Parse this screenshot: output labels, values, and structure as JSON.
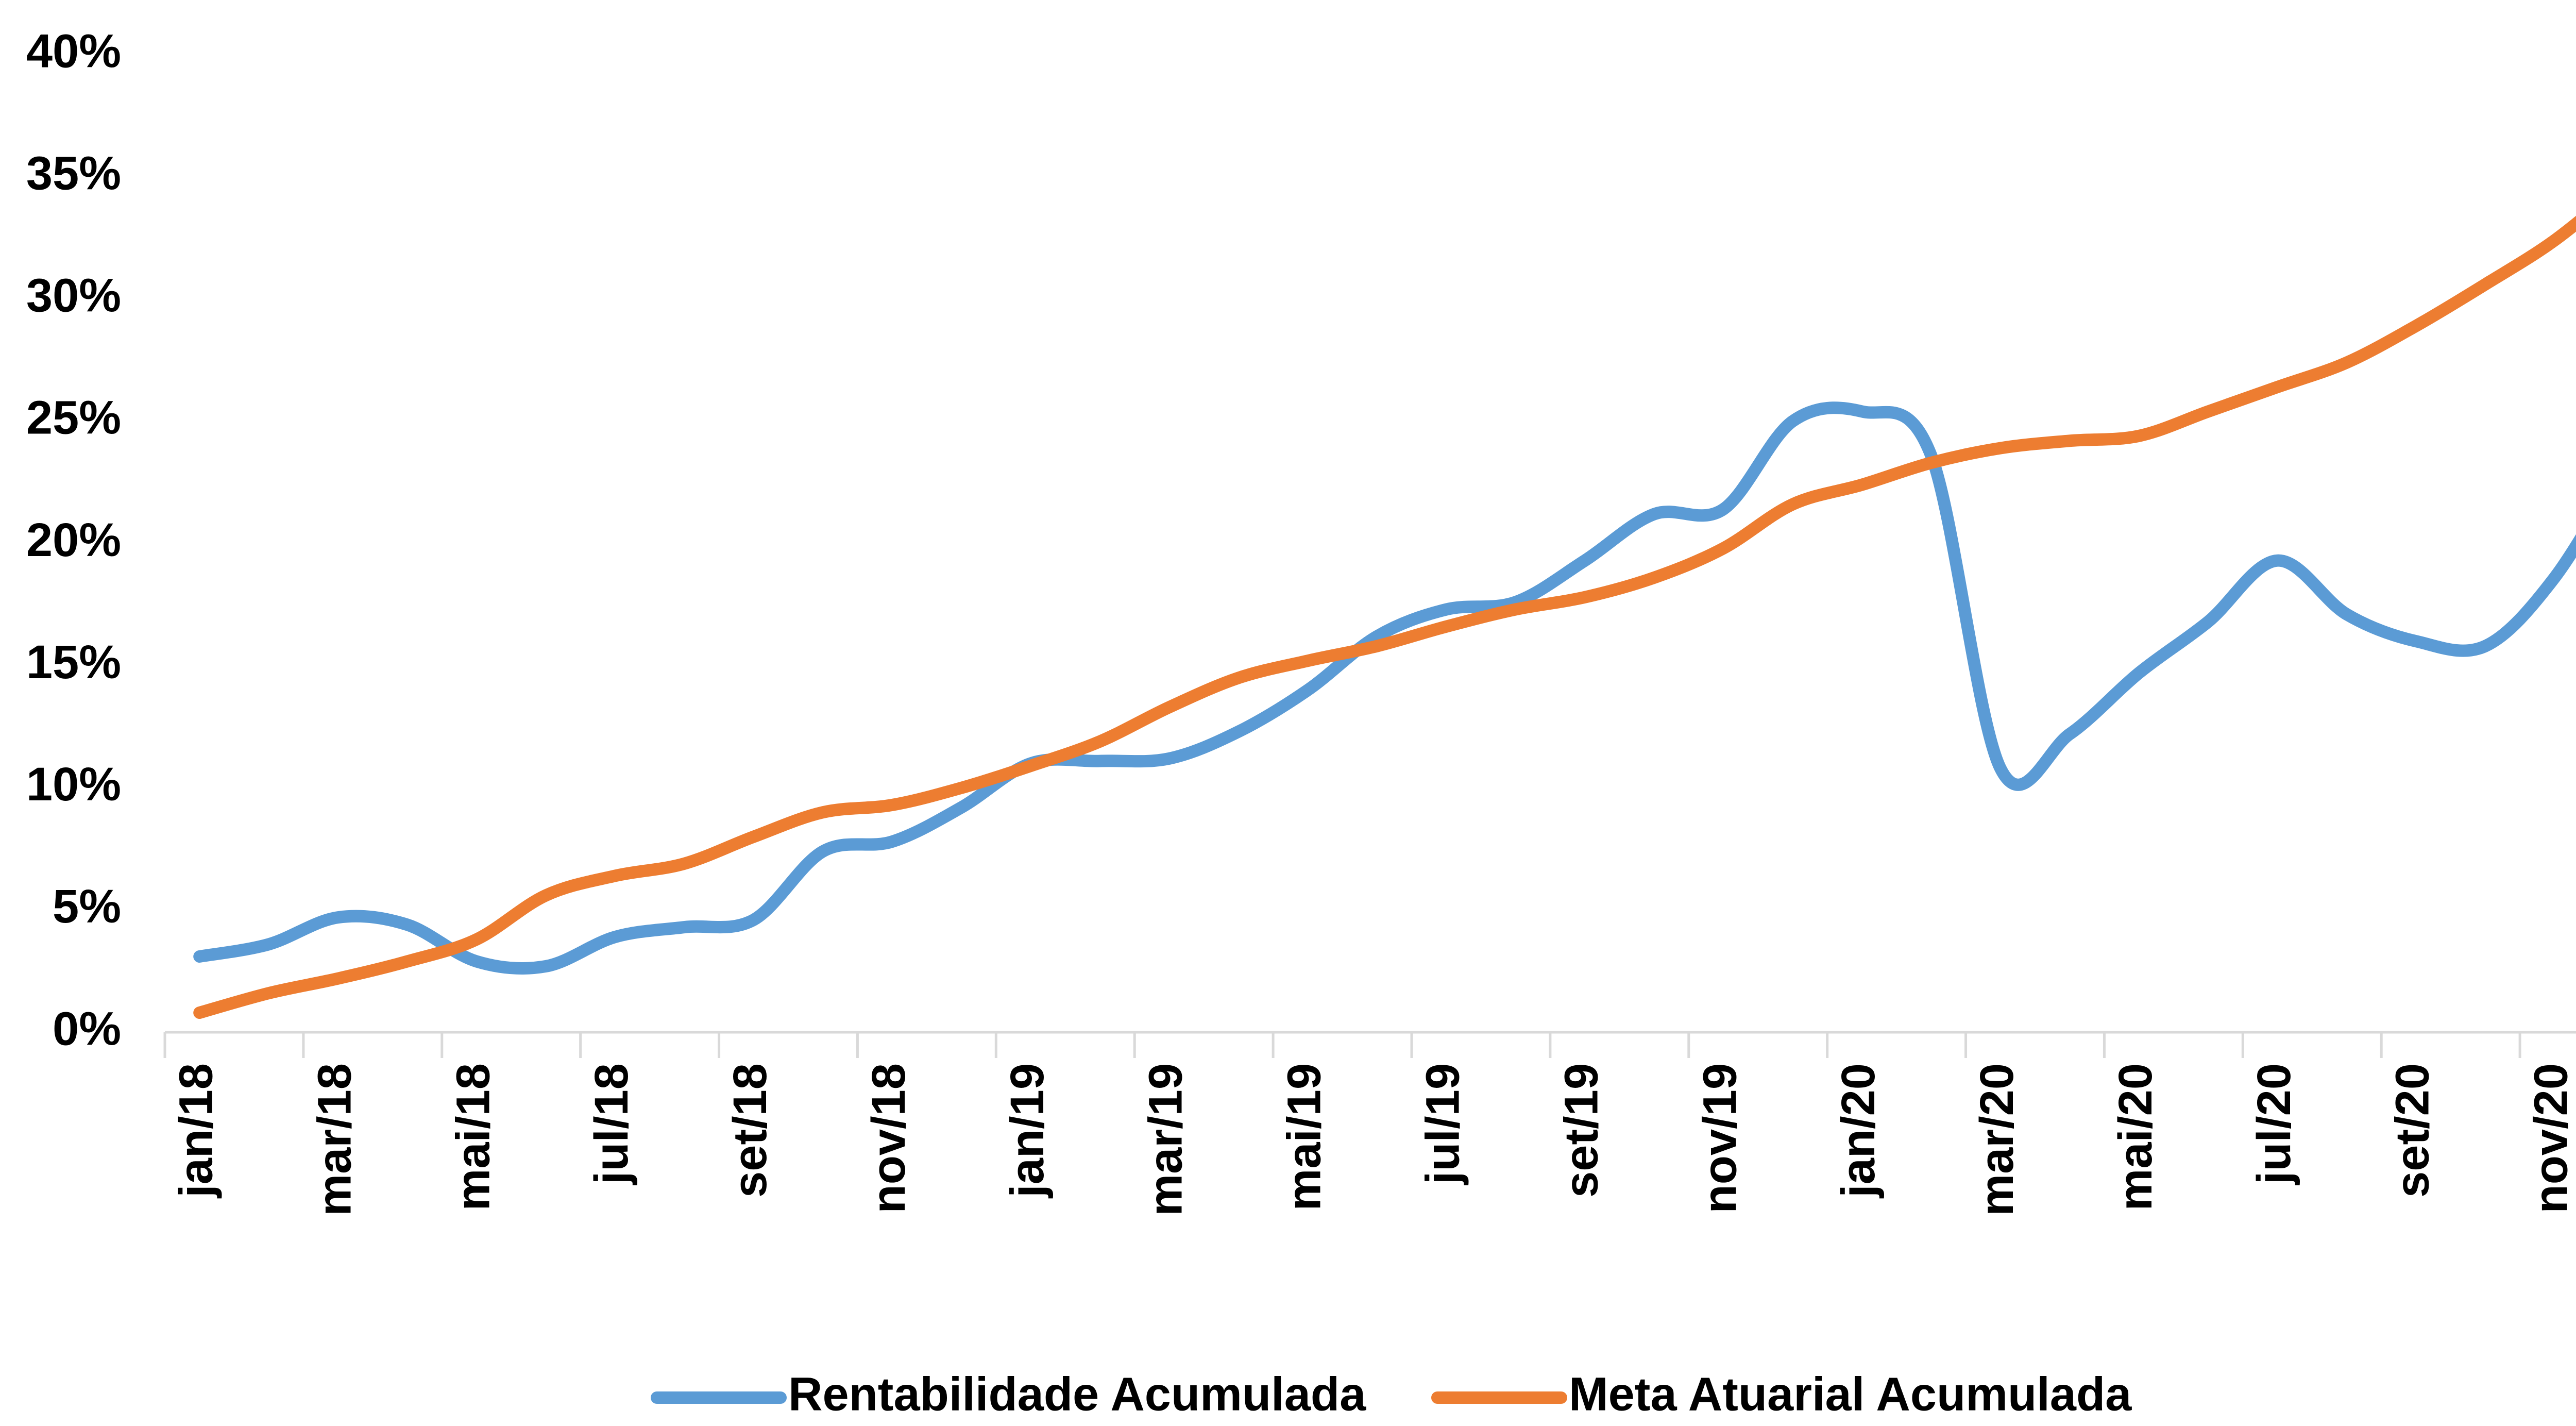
{
  "chart_data": {
    "type": "line",
    "categories": [
      "jan/18",
      null,
      "mar/18",
      null,
      "mai/18",
      null,
      "jul/18",
      null,
      "set/18",
      null,
      "nov/18",
      null,
      "jan/19",
      null,
      "mar/19",
      null,
      "mai/19",
      null,
      "jul/19",
      null,
      "set/19",
      null,
      "nov/19",
      null,
      "jan/20",
      null,
      "mar/20",
      null,
      "mai/20",
      null,
      "jul/20",
      null,
      "set/20",
      null,
      "nov/20",
      null
    ],
    "series": [
      {
        "name": "Rentabilidade Acumulada",
        "color": "#5b9bd5",
        "values": [
          3.1,
          3.6,
          4.7,
          4.4,
          2.9,
          2.7,
          3.9,
          4.3,
          4.6,
          7.4,
          7.8,
          9.2,
          11.0,
          11.1,
          11.2,
          12.3,
          14.0,
          16.2,
          17.3,
          17.6,
          19.3,
          21.2,
          21.4,
          25.0,
          25.4,
          23.6,
          10.8,
          12.2,
          14.7,
          16.8,
          19.3,
          17.1,
          16.0,
          15.8,
          18.6,
          23.2
        ]
      },
      {
        "name": "Meta Atuarial Acumulada",
        "color": "#ed7d31",
        "values": [
          0.8,
          1.6,
          2.2,
          2.9,
          3.8,
          5.6,
          6.4,
          6.9,
          8.0,
          9.0,
          9.3,
          10.0,
          10.9,
          11.9,
          13.3,
          14.5,
          15.2,
          15.8,
          16.6,
          17.3,
          17.8,
          18.6,
          19.8,
          21.6,
          22.4,
          23.3,
          23.9,
          24.2,
          24.4,
          25.4,
          26.4,
          27.4,
          28.9,
          30.6,
          32.4,
          34.7
        ]
      }
    ],
    "ylim": [
      0,
      40
    ],
    "yticks": [
      {
        "value": 0,
        "label": "0%"
      },
      {
        "value": 5,
        "label": "5%"
      },
      {
        "value": 10,
        "label": "10%"
      },
      {
        "value": 15,
        "label": "15%"
      },
      {
        "value": 20,
        "label": "20%"
      },
      {
        "value": 25,
        "label": "25%"
      },
      {
        "value": 30,
        "label": "30%"
      },
      {
        "value": 35,
        "label": "35%"
      },
      {
        "value": 40,
        "label": "40%"
      }
    ],
    "grid": false,
    "legend": "bottom"
  }
}
